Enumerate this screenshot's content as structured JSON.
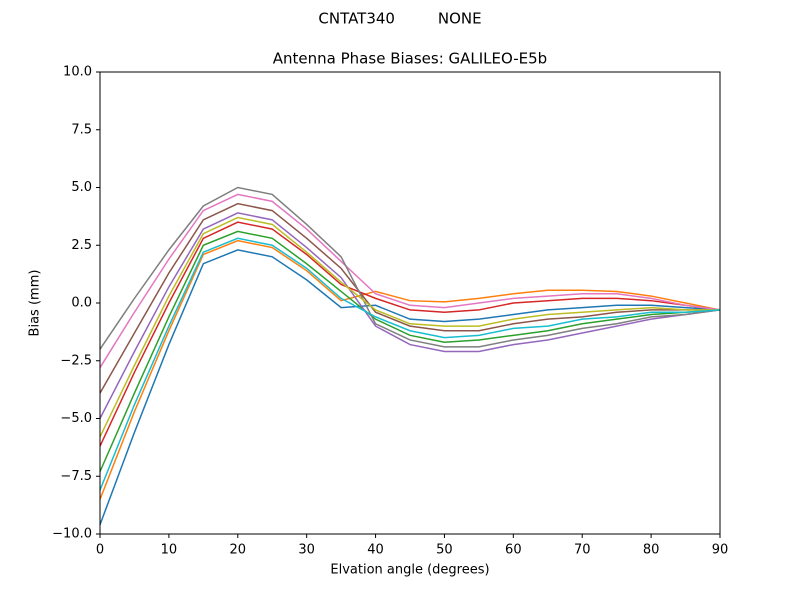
{
  "chart_data": {
    "type": "line",
    "suptitle": "CNTAT340         NONE",
    "title": "Antenna Phase Biases: GALILEO-E5b",
    "xlabel": "Elvation angle (degrees)",
    "ylabel": "Bias (mm)",
    "x": [
      0,
      5,
      10,
      15,
      20,
      25,
      30,
      35,
      40,
      45,
      50,
      55,
      60,
      65,
      70,
      75,
      80,
      85,
      90
    ],
    "xlim": [
      0,
      90
    ],
    "xticks": [
      0,
      10,
      20,
      30,
      40,
      50,
      60,
      70,
      80,
      90
    ],
    "ylim": [
      -10,
      10
    ],
    "yticks": [
      {
        "value": -10,
        "label": "−10.0"
      },
      {
        "value": -7.5,
        "label": "−7.5"
      },
      {
        "value": -5,
        "label": "−5.0"
      },
      {
        "value": -2.5,
        "label": "−2.5"
      },
      {
        "value": 0,
        "label": "0.0"
      },
      {
        "value": 2.5,
        "label": "2.5"
      },
      {
        "value": 5,
        "label": "5.0"
      },
      {
        "value": 7.5,
        "label": "7.5"
      },
      {
        "value": 10,
        "label": "10.0"
      }
    ],
    "grid": false,
    "series": [
      {
        "color": "#1f77b4",
        "values": [
          -9.6,
          -5.6,
          -1.8,
          1.7,
          2.3,
          2.0,
          1.0,
          -0.2,
          -0.1,
          -0.7,
          -0.8,
          -0.7,
          -0.5,
          -0.3,
          -0.2,
          -0.1,
          -0.1,
          -0.2,
          -0.3
        ]
      },
      {
        "color": "#ff7f0e",
        "values": [
          -8.5,
          -4.7,
          -1.2,
          2.1,
          2.7,
          2.4,
          1.4,
          0.1,
          0.5,
          0.1,
          0.05,
          0.2,
          0.4,
          0.55,
          0.55,
          0.5,
          0.3,
          0.0,
          -0.3
        ]
      },
      {
        "color": "#2ca02c",
        "values": [
          -7.3,
          -3.9,
          -0.6,
          2.5,
          3.1,
          2.8,
          1.7,
          0.5,
          -0.7,
          -1.4,
          -1.7,
          -1.6,
          -1.4,
          -1.2,
          -0.9,
          -0.7,
          -0.5,
          -0.4,
          -0.3
        ]
      },
      {
        "color": "#d62728",
        "values": [
          -6.2,
          -3.0,
          0.0,
          2.8,
          3.5,
          3.2,
          2.1,
          0.8,
          0.2,
          -0.3,
          -0.4,
          -0.3,
          0.0,
          0.1,
          0.2,
          0.2,
          0.1,
          -0.1,
          -0.3
        ]
      },
      {
        "color": "#9467bd",
        "values": [
          -5.0,
          -2.1,
          0.7,
          3.2,
          3.9,
          3.6,
          2.4,
          1.1,
          -1.0,
          -1.8,
          -2.1,
          -2.1,
          -1.8,
          -1.6,
          -1.3,
          -1.0,
          -0.7,
          -0.5,
          -0.3
        ]
      },
      {
        "color": "#8c564b",
        "values": [
          -3.9,
          -1.3,
          1.3,
          3.6,
          4.3,
          4.0,
          2.8,
          1.5,
          -0.4,
          -1.0,
          -1.2,
          -1.2,
          -0.9,
          -0.7,
          -0.6,
          -0.4,
          -0.3,
          -0.3,
          -0.3
        ]
      },
      {
        "color": "#e377c2",
        "values": [
          -2.8,
          -0.4,
          1.9,
          4.0,
          4.7,
          4.4,
          3.2,
          1.8,
          0.4,
          -0.1,
          -0.2,
          0.0,
          0.2,
          0.3,
          0.4,
          0.4,
          0.2,
          -0.1,
          -0.3
        ]
      },
      {
        "color": "#7f7f7f",
        "values": [
          -2.0,
          0.2,
          2.3,
          4.2,
          5.0,
          4.7,
          3.4,
          2.0,
          -0.9,
          -1.6,
          -1.9,
          -1.9,
          -1.6,
          -1.4,
          -1.1,
          -0.9,
          -0.6,
          -0.5,
          -0.3
        ]
      },
      {
        "color": "#bcbd22",
        "values": [
          -5.8,
          -2.7,
          0.3,
          3.0,
          3.7,
          3.4,
          2.2,
          0.9,
          -0.3,
          -0.9,
          -1.0,
          -1.0,
          -0.7,
          -0.5,
          -0.4,
          -0.3,
          -0.2,
          -0.3,
          -0.3
        ]
      },
      {
        "color": "#17becf",
        "values": [
          -8.1,
          -4.4,
          -1.0,
          2.2,
          2.8,
          2.5,
          1.5,
          0.2,
          -0.6,
          -1.2,
          -1.5,
          -1.4,
          -1.1,
          -1.0,
          -0.7,
          -0.6,
          -0.4,
          -0.4,
          -0.3
        ]
      }
    ]
  }
}
